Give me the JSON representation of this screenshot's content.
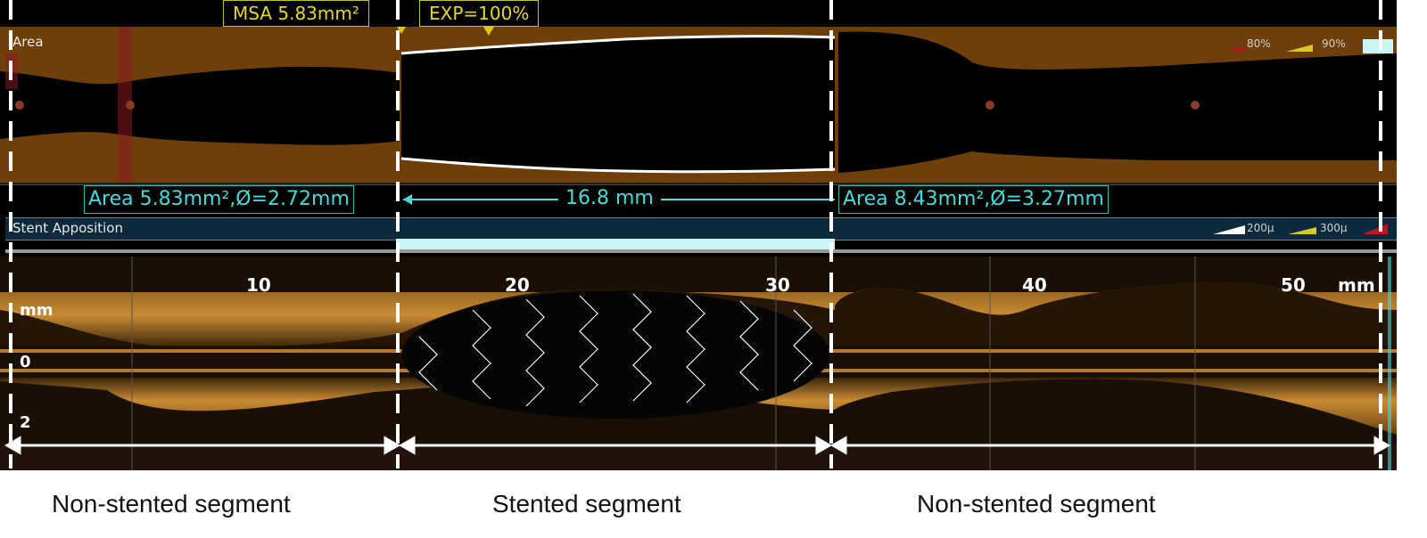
{
  "header": {
    "msa_label": "MSA 5.83mm²",
    "exp_label": "EXP=100%"
  },
  "area_panel": {
    "label": "Area",
    "legend": [
      "80%",
      "90%"
    ]
  },
  "measurements": {
    "proximal": "Area 5.83mm²,Ø=2.72mm",
    "length": "16.8 mm",
    "distal": "Area 8.43mm²,Ø=3.27mm"
  },
  "stent_apposition": {
    "label": "Stent Apposition",
    "legend": [
      "200μ",
      "300μ"
    ]
  },
  "longitudinal_view": {
    "tick_labels": [
      "10",
      "20",
      "30",
      "40",
      "50"
    ],
    "unit": "mm",
    "depth_labels": [
      "mm",
      "0",
      "2"
    ]
  },
  "segments": [
    "Non-stented segment",
    "Stented segment",
    "Non-stented segment"
  ],
  "colors": {
    "lumen_area": "#000000",
    "vessel_area": "#6e3f0a",
    "measure_cyan": "#46dada",
    "highlight_yellow": "#e4d81f",
    "apposition_bar": "#c9f4f8"
  }
}
